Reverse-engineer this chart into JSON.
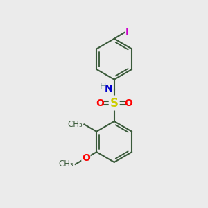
{
  "background_color": "#ebebeb",
  "bond_color": "#3a5a3a",
  "bond_width": 1.5,
  "atom_colors": {
    "S": "#cccc00",
    "O": "#ff0000",
    "N": "#0000cc",
    "H": "#7a9a9a",
    "I": "#cc00cc",
    "C": "#3a5a3a"
  },
  "figsize": [
    3.0,
    3.0
  ],
  "dpi": 100
}
